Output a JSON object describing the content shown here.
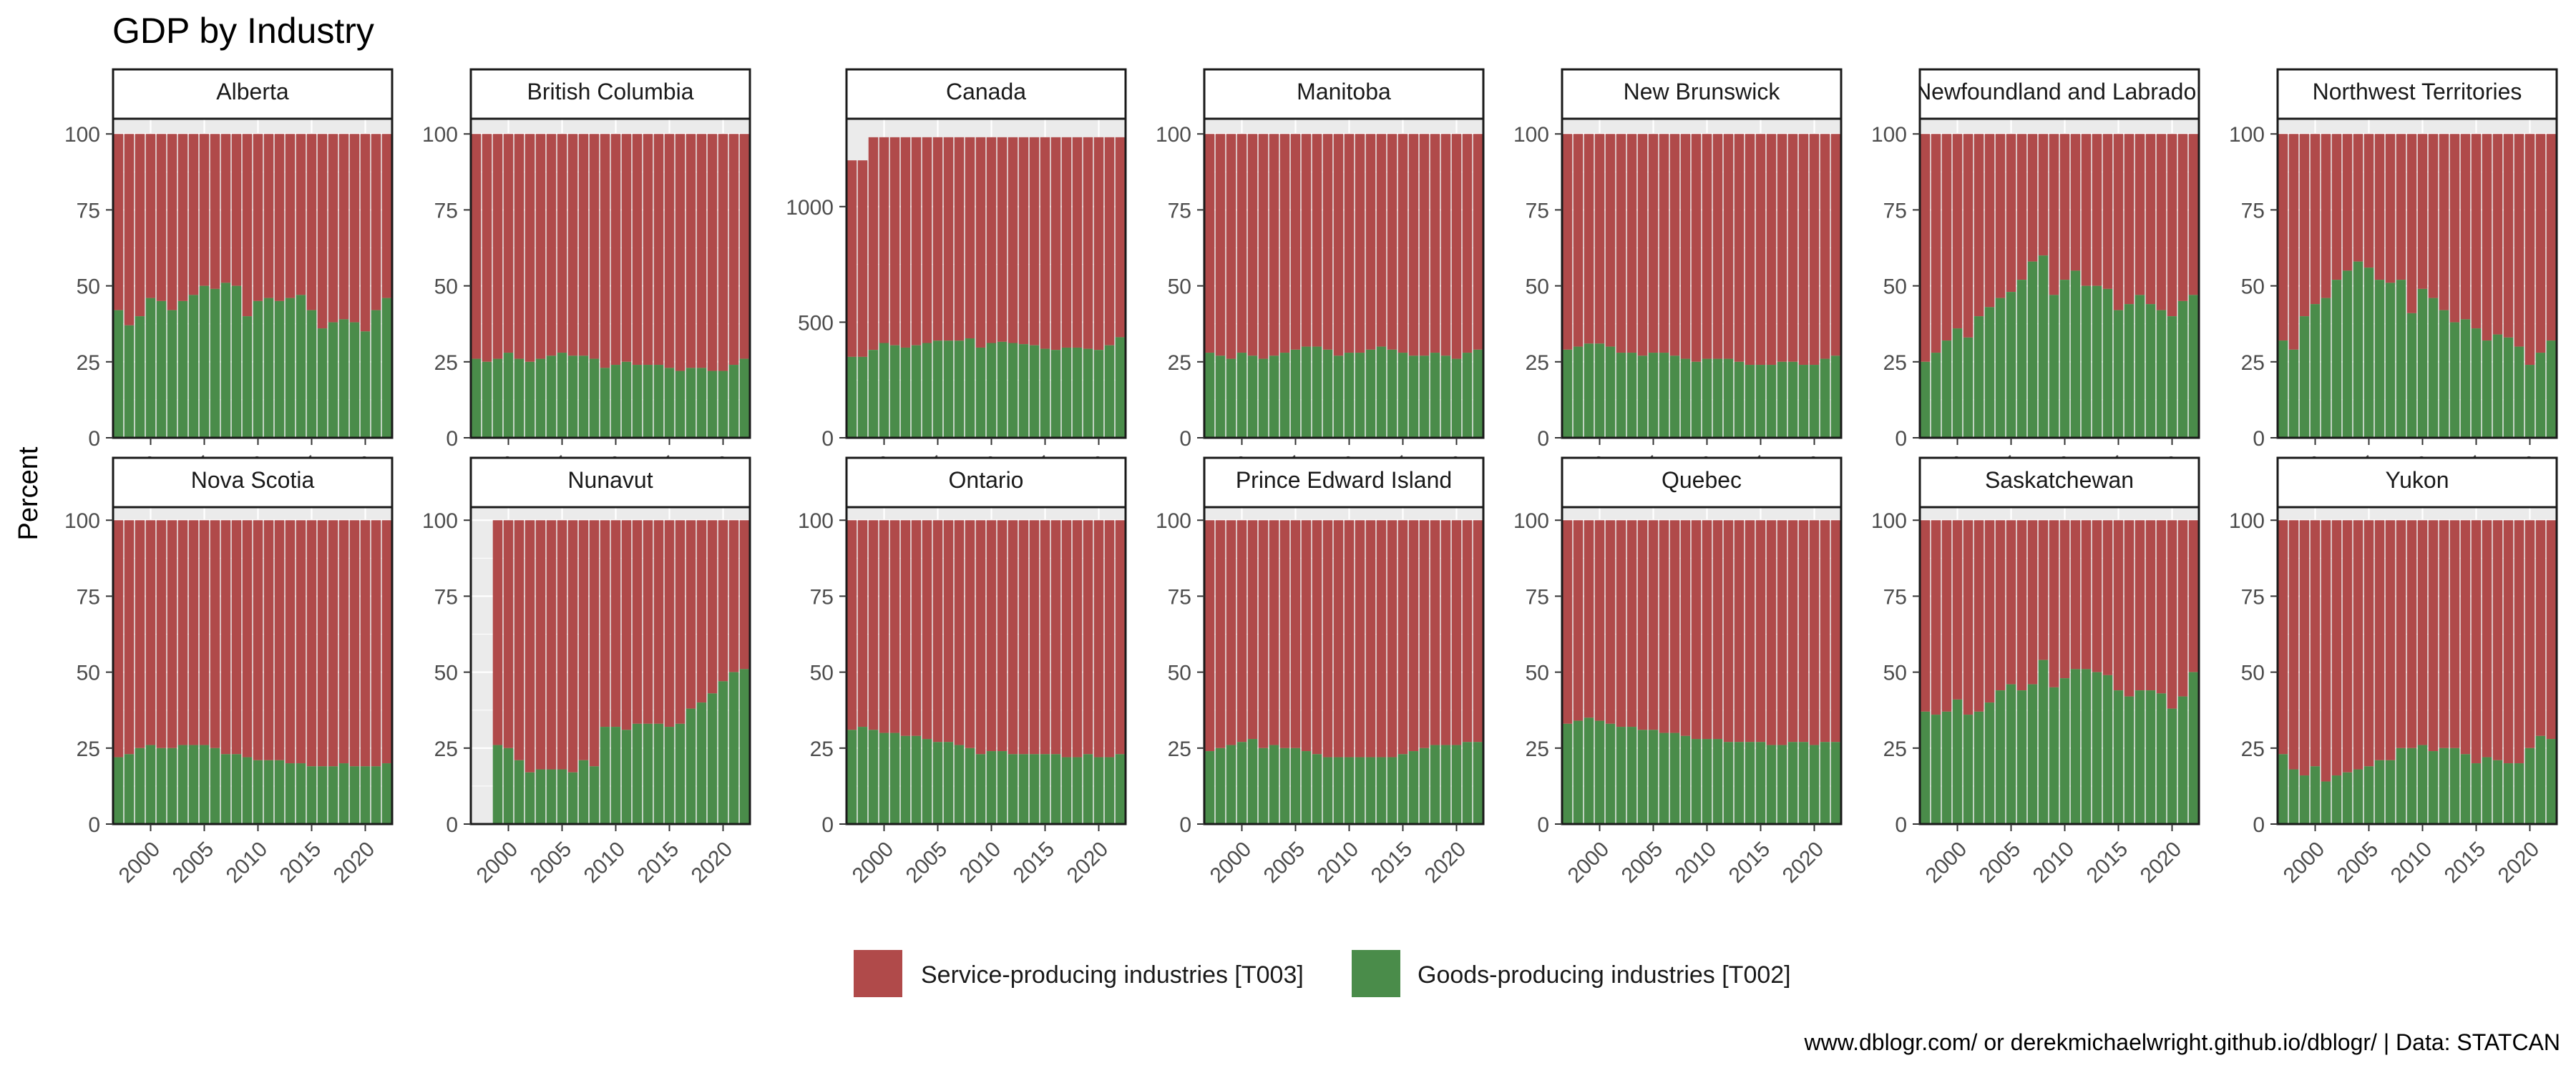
{
  "chart_data": {
    "type": "bar",
    "stacked": true,
    "title": "GDP by Industry",
    "ylabel": "Percent",
    "caption": "www.dblogr.com/ or derekmichaelwright.github.io/dblogr/ | Data: STATCAN",
    "x_ticks": [
      "2000",
      "2005",
      "2010",
      "2015",
      "2020"
    ],
    "xlim": [
      1996.5,
      2022.5
    ],
    "legend_position": "bottom",
    "colors": {
      "service": "#b04a4a",
      "goods": "#4a8c4a",
      "panel_bg": "#ebebeb",
      "grid": "#ffffff"
    },
    "legend": [
      {
        "key": "service",
        "label": "Service-producing industries [T003]"
      },
      {
        "key": "goods",
        "label": "Goods-producing industries [T002]"
      }
    ],
    "panels": [
      {
        "name": "Alberta",
        "start": 1997,
        "ylim": [
          0,
          105
        ],
        "y_ticks": [
          0,
          25,
          50,
          75,
          100
        ],
        "service_total": 100,
        "goods": [
          42,
          37,
          40,
          46,
          45,
          42,
          45,
          47,
          50,
          49,
          51,
          50,
          40,
          45,
          46,
          45,
          46,
          47,
          42,
          36,
          38,
          39,
          38,
          35,
          42,
          46
        ]
      },
      {
        "name": "British Columbia",
        "start": 1997,
        "ylim": [
          0,
          105
        ],
        "y_ticks": [
          0,
          25,
          50,
          75,
          100
        ],
        "service_total": 100,
        "goods": [
          26,
          25,
          26,
          28,
          26,
          25,
          26,
          27,
          28,
          27,
          27,
          26,
          23,
          24,
          25,
          24,
          24,
          24,
          23,
          22,
          23,
          23,
          22,
          22,
          24,
          26
        ]
      },
      {
        "name": "Canada",
        "start": 1997,
        "ylim": [
          0,
          1380
        ],
        "y_ticks": [
          0,
          500,
          1000
        ],
        "service_total": [
          1200,
          1200,
          1300,
          1300,
          1300,
          1300,
          1300,
          1300,
          1300,
          1300,
          1300,
          1300,
          1300,
          1300,
          1300,
          1300,
          1300,
          1300,
          1300,
          1300,
          1300,
          1300,
          1300,
          1300,
          1300,
          1300
        ],
        "goods": [
          350,
          350,
          380,
          410,
          400,
          390,
          400,
          410,
          420,
          420,
          420,
          430,
          390,
          410,
          415,
          410,
          405,
          400,
          385,
          380,
          390,
          390,
          385,
          380,
          400,
          435
        ]
      },
      {
        "name": "Manitoba",
        "start": 1997,
        "ylim": [
          0,
          105
        ],
        "y_ticks": [
          0,
          25,
          50,
          75,
          100
        ],
        "service_total": 100,
        "goods": [
          28,
          27,
          26,
          28,
          27,
          26,
          27,
          28,
          29,
          30,
          30,
          29,
          27,
          28,
          28,
          29,
          30,
          29,
          28,
          27,
          27,
          28,
          27,
          26,
          28,
          29
        ]
      },
      {
        "name": "New Brunswick",
        "start": 1997,
        "ylim": [
          0,
          105
        ],
        "y_ticks": [
          0,
          25,
          50,
          75,
          100
        ],
        "service_total": 100,
        "goods": [
          29,
          30,
          31,
          31,
          30,
          28,
          28,
          27,
          28,
          28,
          27,
          26,
          25,
          26,
          26,
          26,
          25,
          24,
          24,
          24,
          25,
          25,
          24,
          24,
          26,
          27
        ]
      },
      {
        "name": "Newfoundland and Labrador",
        "start": 1997,
        "ylim": [
          0,
          105
        ],
        "y_ticks": [
          0,
          25,
          50,
          75,
          100
        ],
        "service_total": 100,
        "goods": [
          25,
          28,
          32,
          36,
          33,
          40,
          43,
          46,
          48,
          52,
          58,
          60,
          47,
          52,
          55,
          50,
          50,
          49,
          42,
          44,
          47,
          44,
          42,
          40,
          45,
          47
        ]
      },
      {
        "name": "Northwest Territories",
        "start": 1997,
        "ylim": [
          0,
          105
        ],
        "y_ticks": [
          0,
          25,
          50,
          75,
          100
        ],
        "service_total": 100,
        "goods": [
          32,
          29,
          40,
          44,
          46,
          52,
          55,
          58,
          56,
          52,
          51,
          52,
          41,
          49,
          46,
          42,
          38,
          39,
          36,
          32,
          34,
          33,
          30,
          24,
          28,
          32
        ]
      },
      {
        "name": "Nova Scotia",
        "start": 1997,
        "ylim": [
          0,
          105
        ],
        "y_ticks": [
          0,
          25,
          50,
          75,
          100
        ],
        "service_total": 100,
        "goods": [
          22,
          23,
          25,
          26,
          25,
          25,
          26,
          26,
          26,
          25,
          23,
          23,
          22,
          21,
          21,
          21,
          20,
          20,
          19,
          19,
          19,
          20,
          19,
          19,
          19,
          20
        ]
      },
      {
        "name": "Nunavut",
        "start": 1999,
        "ylim": [
          0,
          105
        ],
        "y_ticks": [
          0,
          25,
          50,
          75,
          100
        ],
        "service_total": 100,
        "goods": [
          26,
          25,
          21,
          17,
          18,
          18,
          18,
          17,
          21,
          19,
          32,
          32,
          31,
          33,
          33,
          33,
          32,
          33,
          38,
          40,
          43,
          47,
          50,
          51
        ]
      },
      {
        "name": "Ontario",
        "start": 1997,
        "ylim": [
          0,
          105
        ],
        "y_ticks": [
          0,
          25,
          50,
          75,
          100
        ],
        "service_total": 100,
        "goods": [
          31,
          32,
          31,
          30,
          30,
          29,
          29,
          28,
          27,
          27,
          26,
          25,
          23,
          24,
          24,
          23,
          23,
          23,
          23,
          23,
          22,
          22,
          23,
          22,
          22,
          23
        ]
      },
      {
        "name": "Prince Edward Island",
        "start": 1997,
        "ylim": [
          0,
          105
        ],
        "y_ticks": [
          0,
          25,
          50,
          75,
          100
        ],
        "service_total": 100,
        "goods": [
          24,
          25,
          26,
          27,
          28,
          25,
          26,
          25,
          25,
          24,
          23,
          22,
          22,
          22,
          22,
          22,
          22,
          22,
          23,
          24,
          25,
          26,
          26,
          26,
          27,
          27
        ]
      },
      {
        "name": "Quebec",
        "start": 1997,
        "ylim": [
          0,
          105
        ],
        "y_ticks": [
          0,
          25,
          50,
          75,
          100
        ],
        "service_total": 100,
        "goods": [
          33,
          34,
          35,
          34,
          33,
          32,
          32,
          31,
          31,
          30,
          30,
          29,
          28,
          28,
          28,
          27,
          27,
          27,
          27,
          26,
          26,
          27,
          27,
          26,
          27,
          27
        ]
      },
      {
        "name": "Saskatchewan",
        "start": 1997,
        "ylim": [
          0,
          105
        ],
        "y_ticks": [
          0,
          25,
          50,
          75,
          100
        ],
        "service_total": 100,
        "goods": [
          37,
          36,
          37,
          41,
          36,
          37,
          40,
          44,
          46,
          44,
          46,
          54,
          45,
          48,
          51,
          51,
          50,
          49,
          44,
          42,
          44,
          44,
          43,
          38,
          42,
          50
        ]
      },
      {
        "name": "Yukon",
        "start": 1997,
        "ylim": [
          0,
          105
        ],
        "y_ticks": [
          0,
          25,
          50,
          75,
          100
        ],
        "service_total": 100,
        "goods": [
          23,
          18,
          16,
          19,
          14,
          16,
          17,
          18,
          19,
          21,
          21,
          25,
          25,
          26,
          24,
          25,
          25,
          23,
          20,
          22,
          21,
          20,
          20,
          25,
          29,
          28
        ]
      }
    ]
  }
}
